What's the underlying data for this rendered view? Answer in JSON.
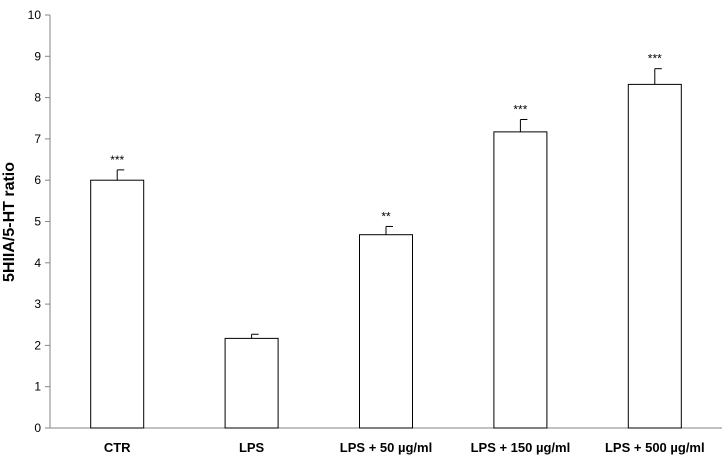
{
  "chart_data": {
    "type": "bar",
    "categories": [
      "CTR",
      "LPS",
      "LPS + 50 µg/ml",
      "LPS + 150 µg/ml",
      "LPS + 500 µg/ml"
    ],
    "values": [
      6.0,
      2.17,
      4.68,
      7.17,
      8.32
    ],
    "errors": [
      0.25,
      0.1,
      0.2,
      0.3,
      0.38
    ],
    "significance": [
      "***",
      "",
      "**",
      "***",
      "***"
    ],
    "xlabel": "",
    "ylabel": "5HIIA/5-HT ratio",
    "ylim": [
      0,
      10
    ],
    "yticks": [
      "0",
      "1",
      "2",
      "3",
      "4",
      "5",
      "6",
      "7",
      "8",
      "9",
      "10"
    ],
    "grid": false,
    "bar_fill": "#ffffff",
    "bar_stroke": "#000000"
  }
}
